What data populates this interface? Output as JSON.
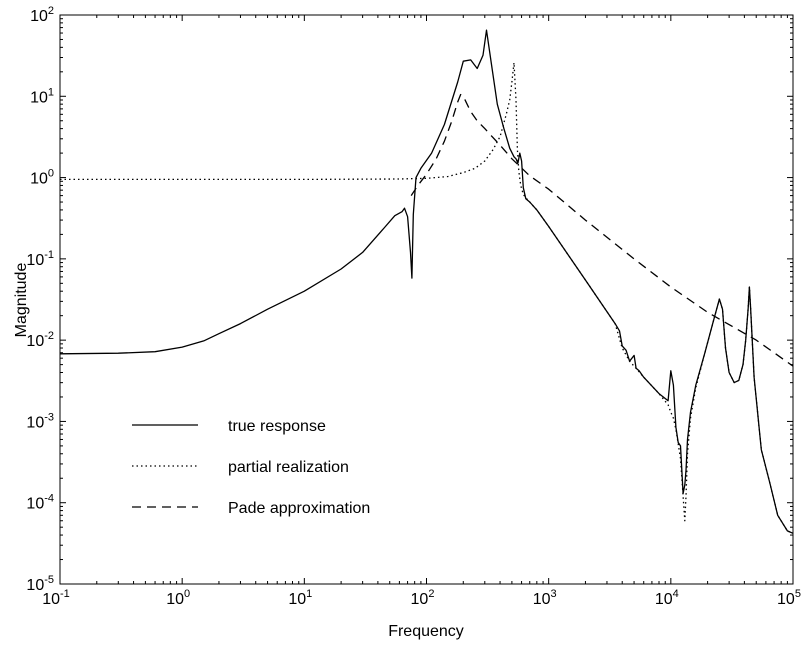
{
  "chart_data": {
    "type": "line",
    "title": "",
    "xlabel": "Frequency",
    "ylabel": "Magnitude",
    "xscale": "log",
    "yscale": "log",
    "xlim": [
      0.1,
      100000
    ],
    "ylim": [
      1e-05,
      100
    ],
    "x_ticks": [
      {
        "base": "10",
        "exp": "-1",
        "value": 0.1
      },
      {
        "base": "10",
        "exp": "0",
        "value": 1
      },
      {
        "base": "10",
        "exp": "1",
        "value": 10
      },
      {
        "base": "10",
        "exp": "2",
        "value": 100
      },
      {
        "base": "10",
        "exp": "3",
        "value": 1000
      },
      {
        "base": "10",
        "exp": "4",
        "value": 10000
      },
      {
        "base": "10",
        "exp": "5",
        "value": 100000
      }
    ],
    "y_ticks": [
      {
        "base": "10",
        "exp": "-5",
        "value": 1e-05
      },
      {
        "base": "10",
        "exp": "-4",
        "value": 0.0001
      },
      {
        "base": "10",
        "exp": "-3",
        "value": 0.001
      },
      {
        "base": "10",
        "exp": "-2",
        "value": 0.01
      },
      {
        "base": "10",
        "exp": "-1",
        "value": 0.1
      },
      {
        "base": "10",
        "exp": "0",
        "value": 1
      },
      {
        "base": "10",
        "exp": "1",
        "value": 10
      },
      {
        "base": "10",
        "exp": "2",
        "value": 100
      }
    ],
    "grid": false,
    "legend_position": "bottom-left",
    "series": [
      {
        "name": "true response",
        "style": "solid",
        "x": [
          0.1,
          0.3,
          0.6,
          1,
          1.5,
          2,
          3,
          5,
          10,
          20,
          30,
          45,
          55,
          63,
          66,
          70,
          74,
          76,
          78,
          82,
          90,
          110,
          140,
          180,
          200,
          230,
          260,
          290,
          310,
          340,
          380,
          430,
          480,
          520,
          540,
          560,
          580,
          600,
          620,
          650,
          700,
          800,
          1000,
          2000,
          3500,
          3800,
          4000,
          4300,
          4600,
          5000,
          5200,
          5500,
          6000,
          8000,
          9500,
          10000,
          10500,
          11000,
          11500,
          12000,
          12600,
          13000,
          13300,
          13700,
          14500,
          16000,
          19000,
          22000,
          25000,
          26500,
          28000,
          30000,
          33000,
          36000,
          39000,
          41000,
          43000,
          44000,
          45000,
          48000,
          55000,
          65000,
          75000,
          90000,
          100000
        ],
        "y": [
          0.0068,
          0.0069,
          0.0072,
          0.0082,
          0.0098,
          0.012,
          0.016,
          0.024,
          0.04,
          0.075,
          0.12,
          0.24,
          0.34,
          0.38,
          0.42,
          0.33,
          0.12,
          0.058,
          0.35,
          1.0,
          1.3,
          2.0,
          4.5,
          15,
          27,
          28,
          22,
          32,
          65,
          25,
          8,
          4,
          2.3,
          1.8,
          1.7,
          1.5,
          2.0,
          1.6,
          0.75,
          0.55,
          0.5,
          0.4,
          0.25,
          0.055,
          0.016,
          0.013,
          0.0085,
          0.0075,
          0.0055,
          0.0065,
          0.0045,
          0.0042,
          0.0035,
          0.0022,
          0.0018,
          0.0042,
          0.0028,
          0.00085,
          0.00055,
          0.0005,
          0.00013,
          0.000165,
          0.00025,
          0.0006,
          0.0013,
          0.0028,
          0.007,
          0.016,
          0.032,
          0.024,
          0.008,
          0.004,
          0.003,
          0.0032,
          0.005,
          0.01,
          0.025,
          0.045,
          0.025,
          0.0035,
          0.00045,
          0.00017,
          7e-05,
          4.5e-05,
          4.2e-05
        ]
      },
      {
        "name": "partial realization",
        "style": "dotted",
        "x": [
          0.1,
          1,
          10,
          60,
          100,
          150,
          200,
          250,
          300,
          350,
          400,
          450,
          480,
          500,
          520,
          540,
          555,
          570,
          590,
          620,
          660,
          700,
          800,
          1000,
          2000,
          3500,
          4000,
          4600,
          5200,
          6000,
          8000,
          9500,
          10000,
          10500,
          11000,
          12000,
          12600,
          13000,
          13300,
          13700,
          14500,
          16000,
          19000,
          22000,
          25000,
          26500,
          28000,
          30000,
          33000,
          36000,
          39000,
          41000,
          43000,
          44000,
          45000,
          48000,
          55000,
          65000,
          75000,
          90000,
          100000
        ],
        "y": [
          0.95,
          0.95,
          0.95,
          0.96,
          0.98,
          1.03,
          1.15,
          1.3,
          1.6,
          2.2,
          3.2,
          6,
          9,
          15,
          26,
          9,
          2.2,
          1.2,
          0.8,
          0.62,
          0.55,
          0.5,
          0.4,
          0.25,
          0.055,
          0.016,
          0.008,
          0.0055,
          0.0045,
          0.0035,
          0.0022,
          0.0016,
          0.0013,
          0.0011,
          0.0008,
          0.00035,
          0.00012,
          6e-05,
          0.00012,
          0.0004,
          0.0011,
          0.0026,
          0.007,
          0.016,
          0.032,
          0.024,
          0.008,
          0.004,
          0.003,
          0.0032,
          0.005,
          0.01,
          0.025,
          0.045,
          0.025,
          0.0035,
          0.00045,
          0.00017,
          7e-05,
          4.5e-05,
          4.2e-05
        ]
      },
      {
        "name": "Pade approximation",
        "style": "dashed",
        "x": [
          75,
          85,
          100,
          120,
          140,
          160,
          180,
          190,
          200,
          215,
          230,
          260,
          300,
          350,
          400,
          500,
          700,
          1000,
          2000,
          5000,
          10000,
          20000,
          50000,
          100000
        ],
        "y": [
          0.6,
          0.8,
          1.1,
          1.7,
          2.8,
          4.8,
          8.5,
          10.5,
          10,
          8,
          6.5,
          5,
          4,
          3.1,
          2.5,
          1.7,
          1.05,
          0.72,
          0.3,
          0.1,
          0.045,
          0.022,
          0.01,
          0.0048
        ]
      }
    ]
  }
}
